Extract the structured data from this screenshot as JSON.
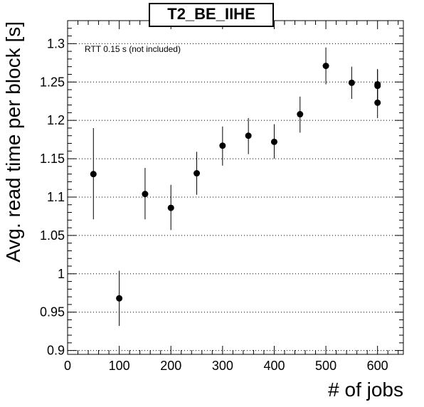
{
  "chart_data": {
    "type": "scatter",
    "title": "T2_BE_IIHE",
    "xlabel": "# of jobs",
    "ylabel": "Avg. read time per block [s]",
    "annotation": "RTT 0.15 s (not included)",
    "xlim": [
      0,
      650
    ],
    "ylim": [
      0.895,
      1.33
    ],
    "x_ticks": [
      0,
      100,
      200,
      300,
      400,
      500,
      600
    ],
    "x_tick_labels": [
      "0",
      "100",
      "200",
      "300",
      "400",
      "500",
      "600"
    ],
    "y_ticks": [
      0.9,
      0.95,
      1.0,
      1.05,
      1.1,
      1.15,
      1.2,
      1.25,
      1.3
    ],
    "y_tick_labels": [
      "0.9",
      "0.95",
      "1",
      "1.05",
      "1.1",
      "1.15",
      "1.2",
      "1.25",
      "1.3"
    ],
    "grid": "horizontal dotted",
    "marker_color": "#000000",
    "points": [
      {
        "x": 50,
        "y": 1.13,
        "err_low": 1.071,
        "err_high": 1.19
      },
      {
        "x": 100,
        "y": 0.968,
        "err_low": 0.932,
        "err_high": 1.004
      },
      {
        "x": 150,
        "y": 1.104,
        "err_low": 1.071,
        "err_high": 1.138
      },
      {
        "x": 200,
        "y": 1.086,
        "err_low": 1.057,
        "err_high": 1.116
      },
      {
        "x": 250,
        "y": 1.131,
        "err_low": 1.103,
        "err_high": 1.159
      },
      {
        "x": 300,
        "y": 1.167,
        "err_low": 1.141,
        "err_high": 1.192
      },
      {
        "x": 350,
        "y": 1.18,
        "err_low": 1.156,
        "err_high": 1.203
      },
      {
        "x": 400,
        "y": 1.172,
        "err_low": 1.15,
        "err_high": 1.195
      },
      {
        "x": 450,
        "y": 1.208,
        "err_low": 1.184,
        "err_high": 1.231
      },
      {
        "x": 500,
        "y": 1.271,
        "err_low": 1.247,
        "err_high": 1.295
      },
      {
        "x": 550,
        "y": 1.249,
        "err_low": 1.228,
        "err_high": 1.27
      },
      {
        "x": 600,
        "y": 1.247,
        "err_low": 1.226,
        "err_high": 1.267
      },
      {
        "x": 600,
        "y": 1.245,
        "err_low": 1.224,
        "err_high": 1.266
      },
      {
        "x": 600,
        "y": 1.223,
        "err_low": 1.203,
        "err_high": 1.243
      }
    ]
  }
}
